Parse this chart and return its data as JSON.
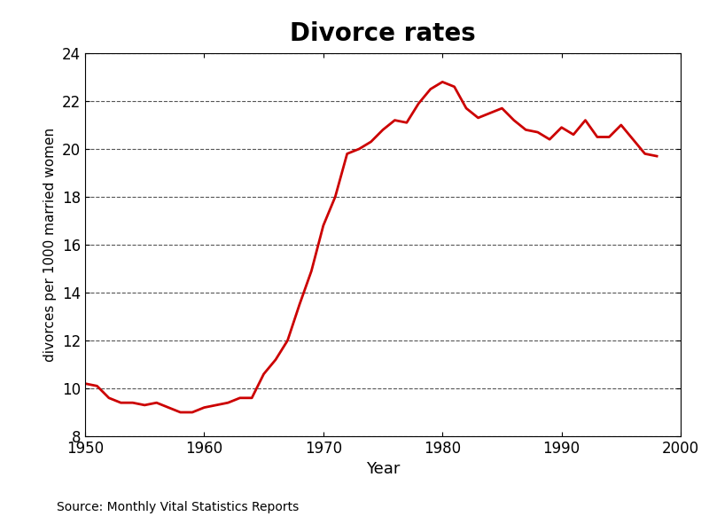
{
  "title": "Divorce rates",
  "xlabel": "Year",
  "ylabel": "divorces per 1000 married women",
  "source_text": "Source: Monthly Vital Statistics Reports",
  "line_color": "#cc0000",
  "line_width": 2.0,
  "background_color": "#ffffff",
  "xlim": [
    1950,
    2000
  ],
  "ylim": [
    8,
    24
  ],
  "xticks": [
    1950,
    1960,
    1970,
    1980,
    1990,
    2000
  ],
  "yticks": [
    8,
    10,
    12,
    14,
    16,
    18,
    20,
    22,
    24
  ],
  "years": [
    1950,
    1951,
    1952,
    1953,
    1954,
    1955,
    1956,
    1957,
    1958,
    1959,
    1960,
    1961,
    1962,
    1963,
    1964,
    1965,
    1966,
    1967,
    1968,
    1969,
    1970,
    1971,
    1972,
    1973,
    1974,
    1975,
    1976,
    1977,
    1978,
    1979,
    1980,
    1981,
    1982,
    1983,
    1984,
    1985,
    1986,
    1987,
    1988,
    1989,
    1990,
    1991,
    1992,
    1993,
    1994,
    1995,
    1996,
    1997,
    1998
  ],
  "values": [
    10.2,
    10.1,
    9.6,
    9.4,
    9.4,
    9.3,
    9.4,
    9.2,
    9.0,
    9.0,
    9.2,
    9.3,
    9.4,
    9.6,
    9.6,
    10.6,
    11.2,
    12.0,
    13.5,
    14.9,
    16.8,
    18.0,
    19.8,
    20.0,
    20.3,
    20.8,
    21.2,
    21.1,
    21.9,
    22.5,
    22.8,
    22.6,
    21.7,
    21.3,
    21.5,
    21.7,
    21.2,
    20.8,
    20.7,
    20.4,
    20.9,
    20.6,
    21.2,
    20.5,
    20.5,
    21.0,
    20.4,
    19.8,
    19.7
  ],
  "title_fontsize": 20,
  "axis_label_fontsize": 13,
  "ylabel_fontsize": 11,
  "tick_fontsize": 12,
  "source_fontsize": 10
}
